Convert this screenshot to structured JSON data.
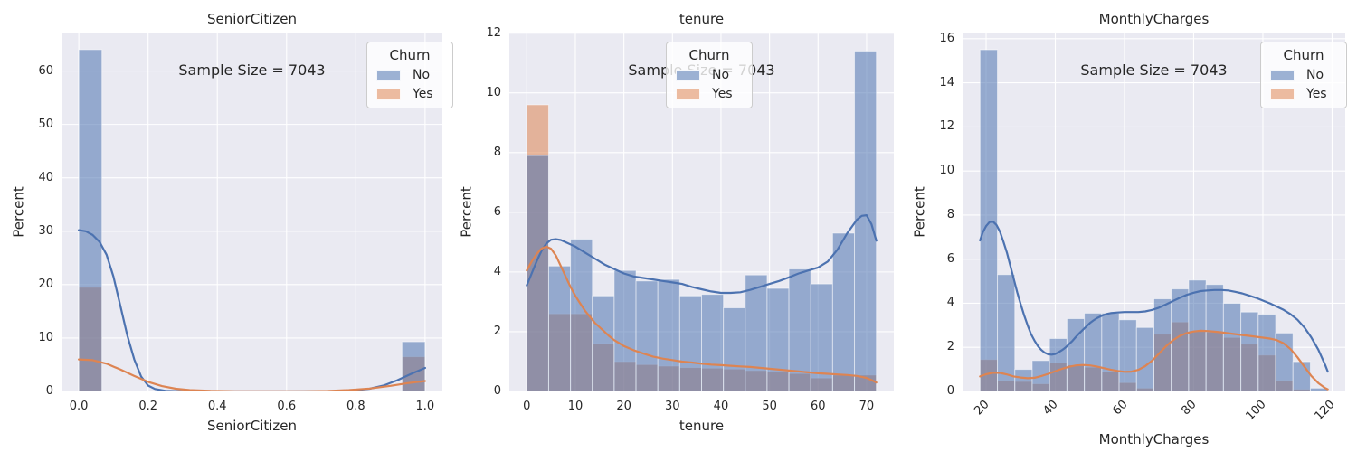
{
  "figure_title": "",
  "legend": {
    "title": "Churn",
    "items": [
      {
        "label": "No",
        "swatch_color": "#9cb1d3"
      },
      {
        "label": "Yes",
        "swatch_color": "#ecbba0"
      }
    ]
  },
  "colors": {
    "figure_bg": "#ffffff",
    "plot_bg": "#eaeaf2",
    "grid": "#ffffff",
    "bar_no_fill": "rgba(76,114,176,0.55)",
    "bar_yes_fill": "rgba(221,132,82,0.55)",
    "bar_edge": "rgba(255,255,255,0.5)",
    "kde_no": "#4c72b0",
    "kde_yes": "#dd8452",
    "text": "#262626"
  },
  "chart_data": [
    {
      "type": "bar",
      "subtype": "overlaid-histogram-with-kde",
      "title": "SeniorCitizen",
      "xlabel": "SeniorCitizen",
      "ylabel": "Percent",
      "annotation": "Sample Size = 7043",
      "sample_size": 7043,
      "hue": "Churn",
      "series_names": [
        "No",
        "Yes"
      ],
      "stat": "percent",
      "grid": true,
      "legend_position": "upper-right",
      "xlim": [
        -0.05,
        1.05
      ],
      "ylim": [
        0,
        67.2
      ],
      "xticks": [
        0.0,
        0.2,
        0.4,
        0.6,
        0.8,
        1.0
      ],
      "xtick_labels": [
        "0.0",
        "0.2",
        "0.4",
        "0.6",
        "0.8",
        "1.0"
      ],
      "xtick_rotation": 0,
      "yticks": [
        0,
        10,
        20,
        30,
        40,
        50,
        60
      ],
      "ytick_labels": [
        "0",
        "10",
        "20",
        "30",
        "40",
        "50",
        "60"
      ],
      "bin_start": 0,
      "bin_width": 0.066667,
      "bars_no": [
        64,
        0,
        0,
        0,
        0,
        0,
        0,
        0,
        0,
        0,
        0,
        0,
        0,
        0,
        9.3
      ],
      "bars_yes": [
        19.5,
        0,
        0,
        0,
        0,
        0,
        0,
        0,
        0,
        0,
        0,
        0,
        0,
        0,
        6.5
      ],
      "kde_no": [
        [
          0,
          30.2
        ],
        [
          0.02,
          30.0
        ],
        [
          0.04,
          29.3
        ],
        [
          0.06,
          28.0
        ],
        [
          0.08,
          25.6
        ],
        [
          0.1,
          21.5
        ],
        [
          0.12,
          16.0
        ],
        [
          0.14,
          10.5
        ],
        [
          0.16,
          6.0
        ],
        [
          0.18,
          2.8
        ],
        [
          0.2,
          1.1
        ],
        [
          0.22,
          0.45
        ],
        [
          0.25,
          0.12
        ],
        [
          0.3,
          0.02
        ],
        [
          0.4,
          0
        ],
        [
          0.5,
          0
        ],
        [
          0.6,
          0
        ],
        [
          0.7,
          0.02
        ],
        [
          0.75,
          0.06
        ],
        [
          0.8,
          0.22
        ],
        [
          0.84,
          0.5
        ],
        [
          0.88,
          1.1
        ],
        [
          0.92,
          2.1
        ],
        [
          0.96,
          3.3
        ],
        [
          1.0,
          4.4
        ]
      ],
      "kde_yes": [
        [
          0,
          6.0
        ],
        [
          0.04,
          5.85
        ],
        [
          0.08,
          5.2
        ],
        [
          0.12,
          4.1
        ],
        [
          0.16,
          2.9
        ],
        [
          0.2,
          1.8
        ],
        [
          0.24,
          1.0
        ],
        [
          0.28,
          0.5
        ],
        [
          0.32,
          0.25
        ],
        [
          0.38,
          0.1
        ],
        [
          0.45,
          0.03
        ],
        [
          0.55,
          0.01
        ],
        [
          0.65,
          0.03
        ],
        [
          0.72,
          0.09
        ],
        [
          0.78,
          0.25
        ],
        [
          0.84,
          0.55
        ],
        [
          0.9,
          1.05
        ],
        [
          0.95,
          1.55
        ],
        [
          1.0,
          1.95
        ]
      ]
    },
    {
      "type": "bar",
      "subtype": "overlaid-histogram-with-kde",
      "title": "tenure",
      "xlabel": "tenure",
      "ylabel": "Percent",
      "annotation": "Sample Size = 7043",
      "sample_size": 7043,
      "hue": "Churn",
      "series_names": [
        "No",
        "Yes"
      ],
      "stat": "percent",
      "grid": true,
      "legend_position": "upper-center",
      "xlim": [
        -3.6,
        75.6
      ],
      "ylim": [
        0,
        12.02
      ],
      "xticks": [
        0,
        10,
        20,
        30,
        40,
        50,
        60,
        70
      ],
      "xtick_labels": [
        "0",
        "10",
        "20",
        "30",
        "40",
        "50",
        "60",
        "70"
      ],
      "xtick_rotation": 0,
      "yticks": [
        0,
        2,
        4,
        6,
        8,
        10,
        12
      ],
      "ytick_labels": [
        "0",
        "2",
        "4",
        "6",
        "8",
        "10",
        "12"
      ],
      "bin_start": 0,
      "bin_width": 4.5,
      "bars_no": [
        7.9,
        4.2,
        5.1,
        3.2,
        4.05,
        3.7,
        3.75,
        3.2,
        3.25,
        2.8,
        3.9,
        3.45,
        4.1,
        3.6,
        5.3,
        11.4
      ],
      "bars_yes": [
        9.6,
        2.6,
        2.6,
        1.6,
        1.0,
        0.9,
        0.85,
        0.8,
        0.78,
        0.75,
        0.7,
        0.65,
        0.6,
        0.45,
        0.55,
        0.55
      ],
      "kde_no": [
        [
          0,
          3.55
        ],
        [
          1,
          3.95
        ],
        [
          2,
          4.35
        ],
        [
          3,
          4.7
        ],
        [
          4,
          4.95
        ],
        [
          5,
          5.08
        ],
        [
          6,
          5.1
        ],
        [
          7,
          5.07
        ],
        [
          8,
          5.0
        ],
        [
          10,
          4.85
        ],
        [
          12,
          4.65
        ],
        [
          14,
          4.45
        ],
        [
          16,
          4.25
        ],
        [
          18,
          4.1
        ],
        [
          20,
          3.95
        ],
        [
          22,
          3.85
        ],
        [
          24,
          3.8
        ],
        [
          26,
          3.75
        ],
        [
          28,
          3.7
        ],
        [
          30,
          3.65
        ],
        [
          32,
          3.6
        ],
        [
          34,
          3.5
        ],
        [
          36,
          3.42
        ],
        [
          38,
          3.35
        ],
        [
          40,
          3.3
        ],
        [
          42,
          3.3
        ],
        [
          44,
          3.32
        ],
        [
          46,
          3.4
        ],
        [
          48,
          3.5
        ],
        [
          50,
          3.6
        ],
        [
          52,
          3.7
        ],
        [
          54,
          3.82
        ],
        [
          56,
          3.95
        ],
        [
          58,
          4.05
        ],
        [
          60,
          4.15
        ],
        [
          62,
          4.35
        ],
        [
          64,
          4.75
        ],
        [
          66,
          5.3
        ],
        [
          68,
          5.75
        ],
        [
          69,
          5.88
        ],
        [
          70,
          5.9
        ],
        [
          71,
          5.6
        ],
        [
          72,
          5.05
        ]
      ],
      "kde_yes": [
        [
          0,
          4.05
        ],
        [
          1,
          4.35
        ],
        [
          2,
          4.6
        ],
        [
          3,
          4.78
        ],
        [
          4,
          4.85
        ],
        [
          5,
          4.78
        ],
        [
          6,
          4.55
        ],
        [
          7,
          4.2
        ],
        [
          8,
          3.85
        ],
        [
          9,
          3.5
        ],
        [
          10,
          3.2
        ],
        [
          11,
          2.95
        ],
        [
          12,
          2.7
        ],
        [
          13,
          2.5
        ],
        [
          14,
          2.3
        ],
        [
          15,
          2.15
        ],
        [
          16,
          2.0
        ],
        [
          17,
          1.85
        ],
        [
          18,
          1.72
        ],
        [
          19,
          1.62
        ],
        [
          20,
          1.52
        ],
        [
          22,
          1.38
        ],
        [
          24,
          1.27
        ],
        [
          26,
          1.17
        ],
        [
          28,
          1.1
        ],
        [
          30,
          1.05
        ],
        [
          32,
          1.0
        ],
        [
          34,
          0.97
        ],
        [
          36,
          0.93
        ],
        [
          38,
          0.9
        ],
        [
          40,
          0.88
        ],
        [
          42,
          0.86
        ],
        [
          44,
          0.84
        ],
        [
          46,
          0.82
        ],
        [
          48,
          0.79
        ],
        [
          50,
          0.76
        ],
        [
          52,
          0.73
        ],
        [
          54,
          0.7
        ],
        [
          56,
          0.67
        ],
        [
          58,
          0.64
        ],
        [
          60,
          0.61
        ],
        [
          62,
          0.59
        ],
        [
          64,
          0.57
        ],
        [
          66,
          0.55
        ],
        [
          68,
          0.52
        ],
        [
          70,
          0.45
        ],
        [
          71,
          0.38
        ],
        [
          72,
          0.3
        ]
      ]
    },
    {
      "type": "bar",
      "subtype": "overlaid-histogram-with-kde",
      "title": "MonthlyCharges",
      "xlabel": "MonthlyCharges",
      "ylabel": "Percent",
      "annotation": "Sample Size = 7043",
      "sample_size": 7043,
      "hue": "Churn",
      "series_names": [
        "No",
        "Yes"
      ],
      "stat": "percent",
      "grid": true,
      "legend_position": "upper-right",
      "xlim": [
        13.2,
        123.8
      ],
      "ylim": [
        0,
        16.28
      ],
      "xticks": [
        20,
        40,
        60,
        80,
        100,
        120
      ],
      "xtick_labels": [
        "20",
        "40",
        "60",
        "80",
        "100",
        "120"
      ],
      "xtick_rotation": 45,
      "yticks": [
        0,
        2,
        4,
        6,
        8,
        10,
        12,
        14,
        16
      ],
      "ytick_labels": [
        "0",
        "2",
        "4",
        "6",
        "8",
        "10",
        "12",
        "14",
        "16"
      ],
      "bin_start": 18.25,
      "bin_width": 5.025,
      "bars_no": [
        15.5,
        5.3,
        1.0,
        1.4,
        2.4,
        3.3,
        3.55,
        3.55,
        3.25,
        2.9,
        4.2,
        4.65,
        5.05,
        4.85,
        4.0,
        3.6,
        3.5,
        2.65,
        1.35,
        0.15
      ],
      "bars_yes": [
        1.45,
        0.5,
        0.45,
        0.35,
        1.3,
        1.2,
        1.1,
        0.9,
        0.4,
        0.15,
        2.6,
        3.15,
        2.75,
        2.7,
        2.45,
        2.15,
        1.65,
        0.5,
        0.1,
        0.05
      ],
      "kde_no": [
        [
          18.25,
          6.85
        ],
        [
          19,
          7.2
        ],
        [
          20,
          7.5
        ],
        [
          21,
          7.68
        ],
        [
          22,
          7.7
        ],
        [
          23,
          7.55
        ],
        [
          24,
          7.25
        ],
        [
          25,
          6.8
        ],
        [
          26,
          6.3
        ],
        [
          27,
          5.7
        ],
        [
          28,
          5.1
        ],
        [
          29,
          4.5
        ],
        [
          30,
          3.95
        ],
        [
          31,
          3.45
        ],
        [
          32,
          3.0
        ],
        [
          33,
          2.6
        ],
        [
          34,
          2.3
        ],
        [
          35,
          2.05
        ],
        [
          36,
          1.88
        ],
        [
          37,
          1.75
        ],
        [
          38,
          1.68
        ],
        [
          39,
          1.67
        ],
        [
          40,
          1.7
        ],
        [
          41,
          1.78
        ],
        [
          42,
          1.88
        ],
        [
          43,
          2.0
        ],
        [
          44,
          2.15
        ],
        [
          45,
          2.3
        ],
        [
          46,
          2.48
        ],
        [
          47,
          2.65
        ],
        [
          48,
          2.8
        ],
        [
          49,
          2.95
        ],
        [
          50,
          3.1
        ],
        [
          51,
          3.22
        ],
        [
          52,
          3.32
        ],
        [
          53,
          3.4
        ],
        [
          54,
          3.47
        ],
        [
          55,
          3.52
        ],
        [
          56,
          3.55
        ],
        [
          58,
          3.58
        ],
        [
          60,
          3.6
        ],
        [
          62,
          3.6
        ],
        [
          64,
          3.6
        ],
        [
          66,
          3.63
        ],
        [
          68,
          3.7
        ],
        [
          70,
          3.8
        ],
        [
          72,
          3.95
        ],
        [
          74,
          4.1
        ],
        [
          76,
          4.25
        ],
        [
          78,
          4.38
        ],
        [
          80,
          4.48
        ],
        [
          82,
          4.55
        ],
        [
          84,
          4.58
        ],
        [
          86,
          4.6
        ],
        [
          88,
          4.6
        ],
        [
          90,
          4.58
        ],
        [
          92,
          4.52
        ],
        [
          94,
          4.45
        ],
        [
          96,
          4.35
        ],
        [
          98,
          4.25
        ],
        [
          100,
          4.12
        ],
        [
          102,
          4.0
        ],
        [
          104,
          3.85
        ],
        [
          106,
          3.7
        ],
        [
          108,
          3.5
        ],
        [
          110,
          3.25
        ],
        [
          112,
          2.9
        ],
        [
          114,
          2.45
        ],
        [
          116,
          1.9
        ],
        [
          118,
          1.2
        ],
        [
          118.75,
          0.9
        ]
      ],
      "kde_yes": [
        [
          18.25,
          0.68
        ],
        [
          20,
          0.78
        ],
        [
          22,
          0.85
        ],
        [
          24,
          0.84
        ],
        [
          26,
          0.77
        ],
        [
          28,
          0.68
        ],
        [
          30,
          0.63
        ],
        [
          32,
          0.6
        ],
        [
          34,
          0.62
        ],
        [
          36,
          0.7
        ],
        [
          38,
          0.8
        ],
        [
          40,
          0.92
        ],
        [
          42,
          1.03
        ],
        [
          44,
          1.12
        ],
        [
          46,
          1.18
        ],
        [
          48,
          1.2
        ],
        [
          50,
          1.18
        ],
        [
          52,
          1.13
        ],
        [
          54,
          1.06
        ],
        [
          56,
          0.99
        ],
        [
          58,
          0.93
        ],
        [
          60,
          0.89
        ],
        [
          62,
          0.9
        ],
        [
          64,
          0.98
        ],
        [
          66,
          1.15
        ],
        [
          68,
          1.4
        ],
        [
          70,
          1.72
        ],
        [
          72,
          2.05
        ],
        [
          74,
          2.32
        ],
        [
          76,
          2.52
        ],
        [
          78,
          2.65
        ],
        [
          80,
          2.72
        ],
        [
          82,
          2.75
        ],
        [
          84,
          2.74
        ],
        [
          86,
          2.71
        ],
        [
          88,
          2.68
        ],
        [
          90,
          2.64
        ],
        [
          92,
          2.6
        ],
        [
          94,
          2.56
        ],
        [
          96,
          2.52
        ],
        [
          98,
          2.48
        ],
        [
          100,
          2.44
        ],
        [
          102,
          2.4
        ],
        [
          104,
          2.33
        ],
        [
          106,
          2.18
        ],
        [
          108,
          1.92
        ],
        [
          110,
          1.55
        ],
        [
          112,
          1.12
        ],
        [
          114,
          0.7
        ],
        [
          116,
          0.38
        ],
        [
          118,
          0.15
        ],
        [
          118.75,
          0.1
        ]
      ]
    }
  ]
}
